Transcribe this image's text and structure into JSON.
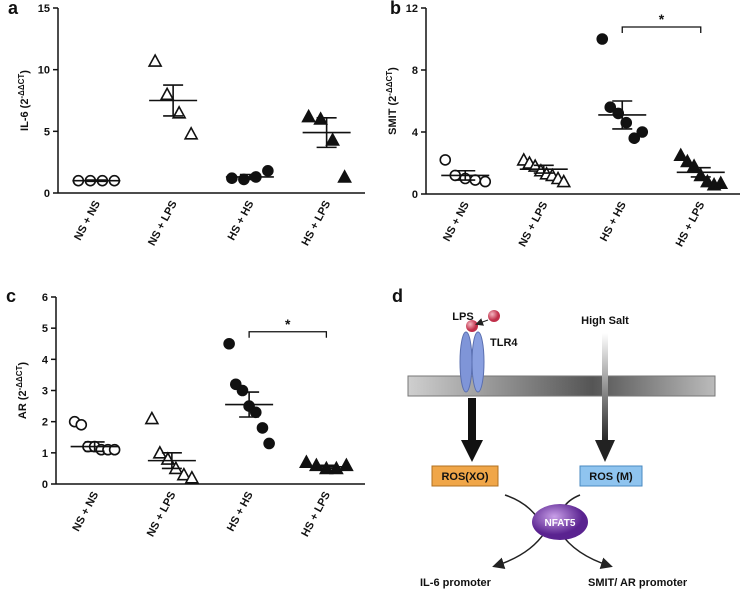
{
  "chart_data": [
    {
      "type": "scatter",
      "panel": "a",
      "y_label": {
        "text": "IL-6 (2",
        "sup": "-ΔΔCT",
        "end": ")"
      },
      "categories": [
        "NS + NS",
        "NS + LPS",
        "HS + HS",
        "HS + LPS"
      ],
      "markers": [
        "open-circle",
        "open-triangle",
        "filled-circle",
        "filled-triangle"
      ],
      "points": [
        [
          1,
          1,
          1,
          1
        ],
        [
          10.7,
          8,
          6.5,
          4.8
        ],
        [
          1.2,
          1.1,
          1.3,
          1.8
        ],
        [
          6.2,
          6,
          4.3,
          1.3
        ]
      ],
      "means": [
        1,
        7.5,
        1.3,
        4.9
      ],
      "errors": [
        0.05,
        1.25,
        0.2,
        1.2
      ],
      "ylim": [
        0,
        15
      ],
      "yticks": [
        0,
        5,
        10,
        15
      ]
    },
    {
      "type": "scatter",
      "panel": "b",
      "y_label": {
        "text": "SMIT (2",
        "sup": "-ΔΔCT",
        "end": ")"
      },
      "categories": [
        "NS + NS",
        "NS + LPS",
        "HS + HS",
        "HS + LPS"
      ],
      "markers": [
        "open-circle",
        "open-triangle",
        "filled-circle",
        "filled-triangle"
      ],
      "points": [
        [
          2.2,
          1.2,
          1.0,
          0.9,
          0.8
        ],
        [
          2.2,
          2.0,
          1.8,
          1.5,
          1.3,
          1.2,
          1.0,
          0.8
        ],
        [
          10,
          5.6,
          5.2,
          4.6,
          3.6,
          4.0
        ],
        [
          2.5,
          2.1,
          1.8,
          1.2,
          0.8,
          0.6,
          0.7
        ]
      ],
      "means": [
        1.2,
        1.6,
        5.1,
        1.4
      ],
      "errors": [
        0.3,
        0.25,
        0.9,
        0.3
      ],
      "ylim": [
        0,
        12
      ],
      "yticks": [
        0,
        4,
        8,
        12
      ],
      "significance": {
        "from": 2,
        "to": 3,
        "label": "*"
      }
    },
    {
      "type": "scatter",
      "panel": "c",
      "y_label": {
        "text": "AR (2",
        "sup": "-ΔΔCT",
        "end": ")"
      },
      "categories": [
        "NS + NS",
        "NS + LPS",
        "HS + HS",
        "HS + LPS"
      ],
      "markers": [
        "open-circle",
        "open-triangle",
        "filled-circle",
        "filled-triangle"
      ],
      "points": [
        [
          2.0,
          1.9,
          1.2,
          1.2,
          1.1,
          1.1,
          1.1
        ],
        [
          2.1,
          1.0,
          0.8,
          0.5,
          0.3,
          0.2
        ],
        [
          4.5,
          3.2,
          3.0,
          2.5,
          2.3,
          1.8,
          1.3
        ],
        [
          0.7,
          0.6,
          0.5,
          0.5,
          0.6
        ]
      ],
      "means": [
        1.2,
        0.75,
        2.55,
        0.55
      ],
      "errors": [
        0.15,
        0.25,
        0.4,
        0.05
      ],
      "ylim": [
        0,
        6
      ],
      "yticks": [
        0,
        1,
        2,
        3,
        4,
        5,
        6
      ],
      "significance": {
        "from": 2,
        "to": 3,
        "label": "*"
      }
    }
  ],
  "diagram": {
    "panel": "d",
    "lps": "LPS",
    "tlr4": "TLR4",
    "high_salt": "High Salt",
    "ros_xo": "ROS(XO)",
    "ros_m": "ROS (M)",
    "nfat5": "NFAT5",
    "il6": "IL-6 promoter",
    "smit": "SMIT/ AR promoter"
  }
}
